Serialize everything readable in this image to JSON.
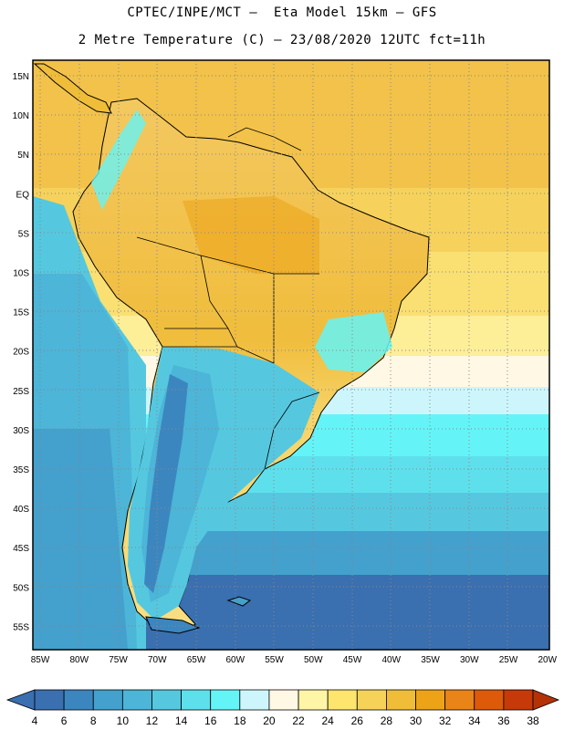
{
  "header": {
    "title_line1": "CPTEC/INPE/MCT –  Eta Model 15km – GFS",
    "title_line2": "2 Metre Temperature (C) – 23/08/2020 12UTC fct=11h"
  },
  "map": {
    "lat_labels": [
      "15N",
      "10N",
      "5N",
      "EQ",
      "5S",
      "10S",
      "15S",
      "20S",
      "25S",
      "30S",
      "35S",
      "40S",
      "45S",
      "50S",
      "55S"
    ],
    "lon_labels": [
      "85W",
      "80W",
      "75W",
      "70W",
      "65W",
      "60W",
      "55W",
      "50W",
      "45W",
      "40W",
      "35W",
      "30W",
      "25W",
      "20W"
    ],
    "lat_range": [
      -57.5,
      16.5
    ],
    "lon_range": [
      -85.5,
      -20.0
    ],
    "grid": "dotted"
  },
  "colorbar": {
    "labels": [
      "4",
      "6",
      "8",
      "10",
      "12",
      "14",
      "16",
      "18",
      "20",
      "22",
      "24",
      "26",
      "28",
      "30",
      "32",
      "34",
      "36",
      "38"
    ],
    "colors": [
      "#3a6fb0",
      "#3c86c0",
      "#44a0cc",
      "#4cb5d8",
      "#55c8e0",
      "#5ee0ec",
      "#64f4f8",
      "#cdf6fc",
      "#fff8e4",
      "#fff5a6",
      "#fde56e",
      "#f6d258",
      "#f0bd38",
      "#eda318",
      "#e88418",
      "#dc5a0a",
      "#c53a08"
    ]
  }
}
